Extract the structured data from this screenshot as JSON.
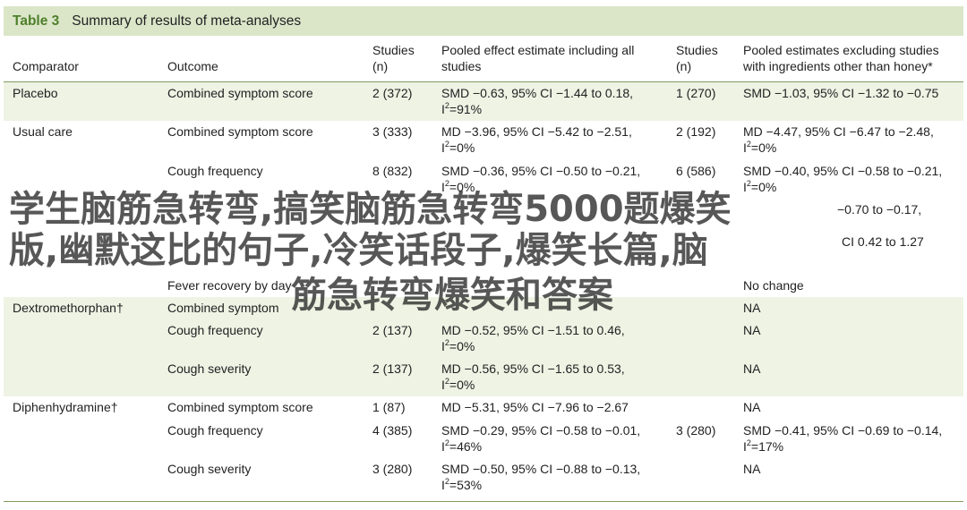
{
  "table": {
    "number": "Table 3",
    "caption": "Summary of results of meta-analyses",
    "headers": {
      "comparator": "Comparator",
      "outcome": "Outcome",
      "studies1_l1": "Studies",
      "studies1_l2": "(n)",
      "pooled_all_l1": "Pooled effect estimate including all",
      "pooled_all_l2": "studies",
      "studies2_l1": "Studies",
      "studies2_l2": "(n)",
      "pooled_excl_l1": "Pooled estimates excluding studies",
      "pooled_excl_l2": "with ingredients other than honey*"
    },
    "rows": [
      {
        "comparator": "Placebo",
        "outcome": "Combined symptom score",
        "studies": "2 (372)",
        "estimate": "SMD −0.63, 95% CI −1.44 to 0.18,",
        "i2": "=91%",
        "studies_excl": "1 (270)",
        "estimate_excl": "SMD −1.03, 95% CI −1.32 to −0.75",
        "i2_excl": ""
      },
      {
        "comparator": "Usual care",
        "outcome": "Combined symptom score",
        "studies": "3 (333)",
        "estimate": "MD −3.96, 95% CI −5.42 to −2.51,",
        "i2": "=0%",
        "studies_excl": "2 (192)",
        "estimate_excl": "MD −4.47, 95% CI −6.47 to −2.48,",
        "i2_excl": "=0%"
      },
      {
        "comparator": "",
        "outcome": "Cough frequency",
        "studies": "8 (832)",
        "estimate": "SMD −0.36, 95% CI −0.50 to −0.21,",
        "i2": "=0%",
        "studies_excl": "6 (586)",
        "estimate_excl": "SMD −0.40, 95% CI −0.58 to −0.21,",
        "i2_excl": "=0%"
      },
      {
        "comparator": "",
        "outcome": "",
        "studies": "",
        "estimate": "",
        "i2": "",
        "studies_excl": "",
        "estimate_excl": "−0.70 to −0.17,",
        "i2_excl": ""
      },
      {
        "comparator": "",
        "outcome": "",
        "studies": "",
        "estimate": "",
        "i2": "",
        "studies_excl": "",
        "estimate_excl": "CI 0.42 to 1.27",
        "i2_excl": ""
      },
      {
        "comparator": "",
        "outcome": "",
        "studies": "",
        "estimate": "",
        "i2": "",
        "studies_excl": "",
        "estimate_excl": "",
        "i2_excl": ""
      },
      {
        "comparator": "",
        "outcome": "Fever recovery by day",
        "studies": "",
        "estimate": "",
        "i2": "",
        "studies_excl": "",
        "estimate_excl": "No change",
        "i2_excl": ""
      },
      {
        "comparator": "Dextromethorphan†",
        "outcome": "Combined symptom",
        "studies": "",
        "estimate": "",
        "i2": "",
        "studies_excl": "",
        "estimate_excl": "NA",
        "i2_excl": ""
      },
      {
        "comparator": "",
        "outcome": "Cough frequency",
        "studies": "2 (137)",
        "estimate": "MD −0.52, 95% CI −1.51 to 0.46,",
        "i2": "=0%",
        "studies_excl": "",
        "estimate_excl": "NA",
        "i2_excl": ""
      },
      {
        "comparator": "",
        "outcome": "Cough severity",
        "studies": "2 (137)",
        "estimate": "MD −0.56, 95% CI −1.65 to 0.53,",
        "i2": "=0%",
        "studies_excl": "",
        "estimate_excl": "NA",
        "i2_excl": ""
      },
      {
        "comparator": "Diphenhydramine†",
        "outcome": "Combined symptom score",
        "studies": "1 (87)",
        "estimate": "MD −5.31, 95% CI −7.96 to −2.67",
        "i2": "",
        "studies_excl": "",
        "estimate_excl": "NA",
        "i2_excl": ""
      },
      {
        "comparator": "",
        "outcome": "Cough frequency",
        "studies": "4 (385)",
        "estimate": "SMD −0.29, 95% CI −0.58 to −0.01,",
        "i2": "=46%",
        "studies_excl": "3 (280)",
        "estimate_excl": "SMD −0.41, 95% CI −0.69 to −0.14,",
        "i2_excl": "=17%"
      },
      {
        "comparator": "",
        "outcome": "Cough severity",
        "studies": "3 (280)",
        "estimate": "SMD −0.50, 95% CI −0.88 to −0.13,",
        "i2": "=53%",
        "studies_excl": "",
        "estimate_excl": "NA",
        "i2_excl": ""
      }
    ]
  },
  "overlay": {
    "line1": "学生脑筋急转弯,搞笑脑筋急转弯5000题爆笑",
    "line2": "版,幽默这比的句子,冷笑话段子,爆笑长篇,脑",
    "line3": "筋急转弯爆笑和答案"
  }
}
